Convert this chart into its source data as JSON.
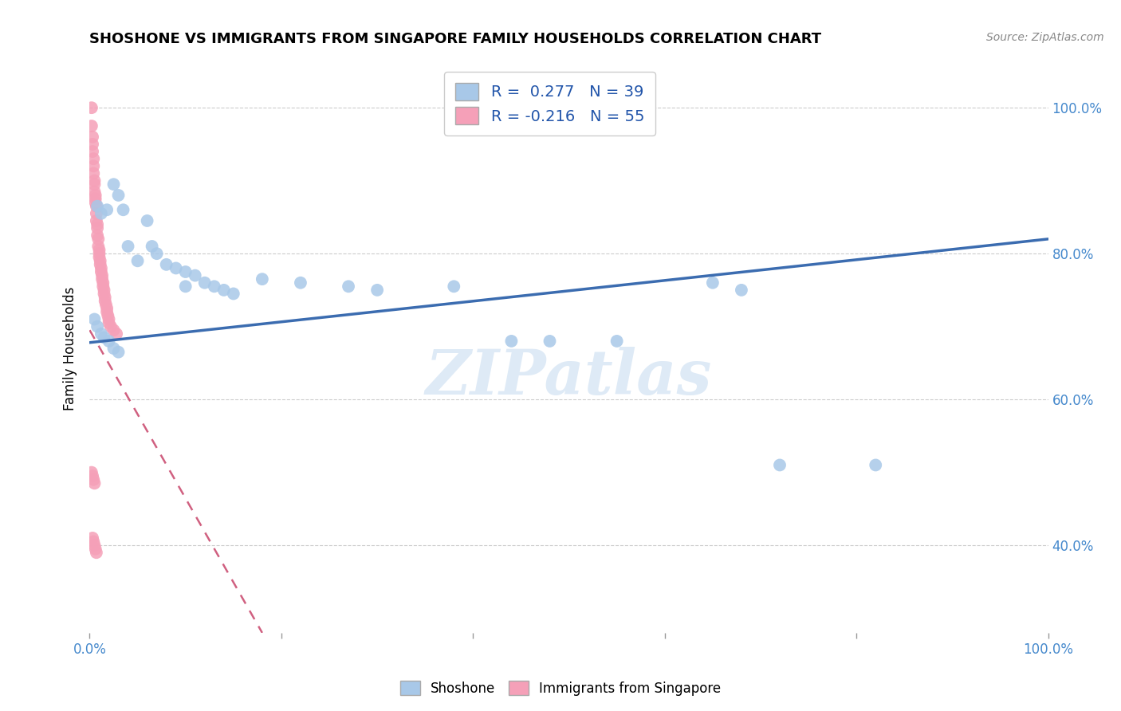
{
  "title": "SHOSHONE VS IMMIGRANTS FROM SINGAPORE FAMILY HOUSEHOLDS CORRELATION CHART",
  "source": "Source: ZipAtlas.com",
  "ylabel": "Family Households",
  "R_blue": 0.277,
  "N_blue": 39,
  "R_pink": -0.216,
  "N_pink": 55,
  "blue_color": "#A8C8E8",
  "pink_color": "#F5A0B8",
  "trend_blue_color": "#3B6CB0",
  "trend_pink_color": "#D06080",
  "watermark_text": "ZIPatlas",
  "xlim": [
    0.0,
    1.0
  ],
  "ylim": [
    0.28,
    1.06
  ],
  "yticks": [
    0.4,
    0.6,
    0.8,
    1.0
  ],
  "ytick_labels": [
    "40.0%",
    "60.0%",
    "80.0%",
    "100.0%"
  ],
  "xtick_labels_left": "0.0%",
  "xtick_labels_right": "100.0%",
  "blue_trend_x": [
    0.0,
    1.0
  ],
  "blue_trend_y": [
    0.678,
    0.82
  ],
  "pink_trend_x": [
    0.0,
    0.18
  ],
  "pink_trend_y": [
    0.695,
    0.28
  ],
  "shoshone_x": [
    0.008,
    0.012,
    0.018,
    0.025,
    0.03,
    0.035,
    0.04,
    0.05,
    0.06,
    0.065,
    0.07,
    0.08,
    0.09,
    0.1,
    0.1,
    0.11,
    0.12,
    0.13,
    0.14,
    0.15,
    0.18,
    0.22,
    0.27,
    0.3,
    0.38,
    0.44,
    0.48,
    0.55,
    0.65,
    0.68,
    0.72,
    0.82,
    0.005,
    0.008,
    0.012,
    0.015,
    0.02,
    0.025,
    0.03
  ],
  "shoshone_y": [
    0.865,
    0.855,
    0.86,
    0.895,
    0.88,
    0.86,
    0.81,
    0.79,
    0.845,
    0.81,
    0.8,
    0.785,
    0.78,
    0.775,
    0.755,
    0.77,
    0.76,
    0.755,
    0.75,
    0.745,
    0.765,
    0.76,
    0.755,
    0.75,
    0.755,
    0.68,
    0.68,
    0.68,
    0.76,
    0.75,
    0.51,
    0.51,
    0.71,
    0.7,
    0.69,
    0.685,
    0.68,
    0.67,
    0.665
  ],
  "singapore_x": [
    0.002,
    0.002,
    0.003,
    0.003,
    0.003,
    0.004,
    0.004,
    0.004,
    0.005,
    0.005,
    0.005,
    0.006,
    0.006,
    0.006,
    0.007,
    0.007,
    0.007,
    0.008,
    0.008,
    0.008,
    0.009,
    0.009,
    0.01,
    0.01,
    0.01,
    0.011,
    0.011,
    0.012,
    0.012,
    0.013,
    0.013,
    0.014,
    0.014,
    0.015,
    0.015,
    0.016,
    0.016,
    0.017,
    0.018,
    0.018,
    0.019,
    0.02,
    0.02,
    0.022,
    0.025,
    0.028,
    0.002,
    0.003,
    0.004,
    0.005,
    0.003,
    0.004,
    0.005,
    0.006,
    0.007
  ],
  "singapore_y": [
    1.0,
    0.975,
    0.96,
    0.95,
    0.94,
    0.93,
    0.92,
    0.91,
    0.9,
    0.895,
    0.885,
    0.88,
    0.875,
    0.87,
    0.865,
    0.855,
    0.845,
    0.84,
    0.835,
    0.825,
    0.82,
    0.81,
    0.805,
    0.8,
    0.795,
    0.79,
    0.785,
    0.78,
    0.775,
    0.77,
    0.765,
    0.76,
    0.755,
    0.75,
    0.745,
    0.74,
    0.735,
    0.73,
    0.725,
    0.72,
    0.715,
    0.71,
    0.705,
    0.7,
    0.695,
    0.69,
    0.5,
    0.495,
    0.49,
    0.485,
    0.41,
    0.405,
    0.4,
    0.395,
    0.39
  ]
}
